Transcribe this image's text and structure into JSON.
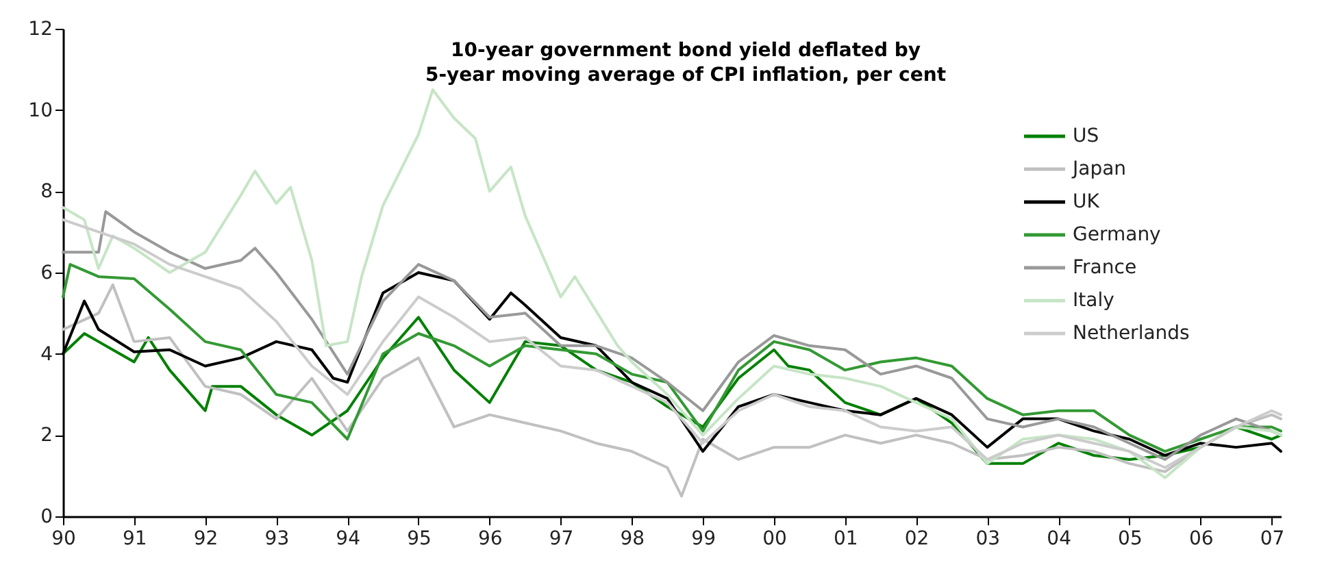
{
  "chart_data": {
    "type": "line",
    "title": "10-year government bond yield deflated by\n5-year moving average of CPI inflation, per cent",
    "xlim": [
      1990,
      2007.13
    ],
    "xticks": [
      {
        "value": 1990,
        "label": "90"
      },
      {
        "value": 1991,
        "label": "91"
      },
      {
        "value": 1992,
        "label": "92"
      },
      {
        "value": 1993,
        "label": "93"
      },
      {
        "value": 1994,
        "label": "94"
      },
      {
        "value": 1995,
        "label": "95"
      },
      {
        "value": 1996,
        "label": "96"
      },
      {
        "value": 1997,
        "label": "97"
      },
      {
        "value": 1998,
        "label": "98"
      },
      {
        "value": 1999,
        "label": "99"
      },
      {
        "value": 2000,
        "label": "00"
      },
      {
        "value": 2001,
        "label": "01"
      },
      {
        "value": 2002,
        "label": "02"
      },
      {
        "value": 2003,
        "label": "03"
      },
      {
        "value": 2004,
        "label": "04"
      },
      {
        "value": 2005,
        "label": "05"
      },
      {
        "value": 2006,
        "label": "06"
      },
      {
        "value": 2007,
        "label": "07"
      }
    ],
    "ylim": [
      0,
      12
    ],
    "yticks": [
      0,
      2,
      4,
      6,
      8,
      10,
      12
    ],
    "grid": false,
    "legend": "top right",
    "line_style": "solid",
    "marker": "none",
    "series": [
      {
        "name": "US",
        "color": "#008000",
        "x": [
          1990,
          1990.3,
          1990.5,
          1991,
          1991.2,
          1991.5,
          1992,
          1992.1,
          1992.5,
          1993,
          1993.5,
          1994,
          1994.5,
          1995,
          1995.5,
          1996,
          1996.5,
          1997,
          1997.5,
          1998,
          1998.5,
          1999,
          1999.5,
          2000,
          2000.2,
          2000.5,
          2001,
          2001.5,
          2002,
          2002.5,
          2003,
          2003.5,
          2004,
          2004.5,
          2005,
          2005.5,
          2006,
          2006.5,
          2007,
          2007.13
        ],
        "values": [
          4.0,
          4.5,
          4.3,
          3.8,
          4.4,
          3.6,
          2.6,
          3.2,
          3.2,
          2.5,
          2.0,
          2.6,
          3.9,
          4.9,
          3.6,
          2.8,
          4.3,
          4.2,
          3.6,
          3.3,
          2.7,
          2.2,
          3.4,
          4.1,
          3.7,
          3.6,
          2.8,
          2.5,
          2.9,
          2.3,
          1.3,
          1.3,
          1.8,
          1.5,
          1.4,
          1.5,
          1.7,
          2.2,
          1.9,
          2.0
        ]
      },
      {
        "name": "Japan",
        "color": "#c0c0c0",
        "x": [
          1990,
          1990.5,
          1990.7,
          1991,
          1991.5,
          1992,
          1992.5,
          1993,
          1993.5,
          1994,
          1994.5,
          1995,
          1995.5,
          1996,
          1996.5,
          1997,
          1997.5,
          1998,
          1998.5,
          1998.7,
          1999,
          1999.5,
          2000,
          2000.5,
          2001,
          2001.5,
          2002,
          2002.5,
          2003,
          2003.5,
          2004,
          2004.5,
          2005,
          2005.5,
          2006,
          2006.5,
          2007,
          2007.13
        ],
        "values": [
          4.6,
          5.0,
          5.7,
          4.3,
          4.4,
          3.2,
          3.0,
          2.4,
          3.4,
          2.1,
          3.4,
          3.9,
          2.2,
          2.5,
          2.3,
          2.1,
          1.8,
          1.6,
          1.2,
          0.5,
          1.9,
          1.4,
          1.7,
          1.7,
          2.0,
          1.8,
          2.0,
          1.8,
          1.4,
          1.5,
          1.7,
          1.6,
          1.3,
          1.1,
          1.7,
          2.2,
          2.5,
          2.4
        ]
      },
      {
        "name": "UK",
        "color": "#000000",
        "x": [
          1990,
          1990.3,
          1990.5,
          1991,
          1991.5,
          1992,
          1992.5,
          1993,
          1993.5,
          1993.8,
          1994,
          1994.5,
          1995,
          1995.5,
          1996,
          1996.3,
          1996.5,
          1997,
          1997.5,
          1998,
          1998.5,
          1999,
          1999.5,
          2000,
          2000.5,
          2001,
          2001.5,
          2002,
          2002.5,
          2003,
          2003.5,
          2004,
          2004.5,
          2005,
          2005.5,
          2006,
          2006.5,
          2007,
          2007.13
        ],
        "values": [
          4.0,
          5.3,
          4.6,
          4.05,
          4.1,
          3.7,
          3.9,
          4.3,
          4.1,
          3.4,
          3.3,
          5.5,
          6.0,
          5.8,
          4.85,
          5.5,
          5.2,
          4.4,
          4.2,
          3.3,
          2.9,
          1.6,
          2.7,
          3.0,
          2.8,
          2.6,
          2.5,
          2.9,
          2.5,
          1.7,
          2.4,
          2.4,
          2.1,
          1.9,
          1.5,
          1.8,
          1.7,
          1.8,
          1.6
        ]
      },
      {
        "name": "Germany",
        "color": "#339933",
        "x": [
          1990,
          1990.1,
          1990.5,
          1991,
          1991.5,
          1992,
          1992.5,
          1993,
          1993.5,
          1994,
          1994.5,
          1995,
          1995.5,
          1996,
          1996.5,
          1997,
          1997.5,
          1998,
          1998.5,
          1999,
          1999.5,
          2000,
          2000.5,
          2001,
          2001.5,
          2002,
          2002.5,
          2003,
          2003.5,
          2004,
          2004.5,
          2005,
          2005.5,
          2006,
          2006.5,
          2007,
          2007.13
        ],
        "values": [
          5.4,
          6.2,
          5.9,
          5.85,
          5.1,
          4.3,
          4.1,
          3.0,
          2.8,
          1.9,
          4.0,
          4.5,
          4.2,
          3.7,
          4.2,
          4.1,
          4.0,
          3.5,
          3.3,
          2.1,
          3.6,
          4.3,
          4.1,
          3.6,
          3.8,
          3.9,
          3.7,
          2.9,
          2.5,
          2.6,
          2.6,
          2.0,
          1.6,
          1.9,
          2.2,
          2.2,
          2.1
        ]
      },
      {
        "name": "France",
        "color": "#999999",
        "x": [
          1990,
          1990.5,
          1990.6,
          1991,
          1991.5,
          1992,
          1992.5,
          1992.7,
          1993,
          1993.5,
          1994,
          1994.5,
          1995,
          1995.5,
          1996,
          1996.5,
          1997,
          1997.5,
          1998,
          1998.5,
          1999,
          1999.5,
          2000,
          2000.5,
          2001,
          2001.5,
          2002,
          2002.5,
          2003,
          2003.5,
          2004,
          2004.5,
          2005,
          2005.5,
          2006,
          2006.5,
          2007,
          2007.13
        ],
        "values": [
          6.5,
          6.5,
          7.5,
          7.0,
          6.5,
          6.1,
          6.3,
          6.6,
          6.0,
          4.85,
          3.5,
          5.3,
          6.2,
          5.8,
          4.9,
          5.0,
          4.2,
          4.2,
          3.9,
          3.3,
          2.6,
          3.8,
          4.45,
          4.2,
          4.1,
          3.5,
          3.7,
          3.4,
          2.4,
          2.2,
          2.4,
          2.2,
          1.8,
          1.4,
          2.0,
          2.4,
          2.1,
          2.0
        ]
      },
      {
        "name": "Italy",
        "color": "#c6e5c6",
        "x": [
          1990,
          1990.3,
          1990.5,
          1990.7,
          1991,
          1991.5,
          1992,
          1992.5,
          1992.7,
          1993,
          1993.2,
          1993.5,
          1993.7,
          1994,
          1994.2,
          1994.5,
          1995,
          1995.2,
          1995.5,
          1995.8,
          1996,
          1996.3,
          1996.5,
          1997,
          1997.2,
          1997.5,
          1997.8,
          1998,
          1998.5,
          1999,
          1999.5,
          2000,
          2000.5,
          2001,
          2001.5,
          2002,
          2002.5,
          2003,
          2003.5,
          2004,
          2004.5,
          2005,
          2005.5,
          2006,
          2006.5,
          2007,
          2007.13
        ],
        "values": [
          7.6,
          7.3,
          6.1,
          6.9,
          6.6,
          6.0,
          6.5,
          7.9,
          8.5,
          7.7,
          8.1,
          6.3,
          4.2,
          4.3,
          5.9,
          7.65,
          9.4,
          10.5,
          9.8,
          9.3,
          8.0,
          8.6,
          7.4,
          5.4,
          5.9,
          5.05,
          4.2,
          3.8,
          3.0,
          2.0,
          2.9,
          3.7,
          3.5,
          3.4,
          3.2,
          2.8,
          2.4,
          1.3,
          1.9,
          2.0,
          1.9,
          1.6,
          0.95,
          1.7,
          2.2,
          2.1,
          2.0
        ]
      },
      {
        "name": "Netherlands",
        "color": "#cccccc",
        "x": [
          1990,
          1990.5,
          1991,
          1991.5,
          1992,
          1992.5,
          1993,
          1993.5,
          1994,
          1994.5,
          1995,
          1995.5,
          1996,
          1996.5,
          1997,
          1997.5,
          1998,
          1998.5,
          1999,
          1999.5,
          2000,
          2000.5,
          2001,
          2001.5,
          2002,
          2002.5,
          2003,
          2003.5,
          2004,
          2004.5,
          2005,
          2005.5,
          2006,
          2006.5,
          2007,
          2007.13
        ],
        "values": [
          7.3,
          7.0,
          6.7,
          6.2,
          5.9,
          5.6,
          4.8,
          3.7,
          3.0,
          4.3,
          5.4,
          4.9,
          4.3,
          4.4,
          3.7,
          3.6,
          3.2,
          2.8,
          1.8,
          2.6,
          3.0,
          2.7,
          2.6,
          2.2,
          2.1,
          2.2,
          1.4,
          1.8,
          2.0,
          1.8,
          1.6,
          1.2,
          1.7,
          2.2,
          2.6,
          2.5
        ]
      }
    ]
  }
}
